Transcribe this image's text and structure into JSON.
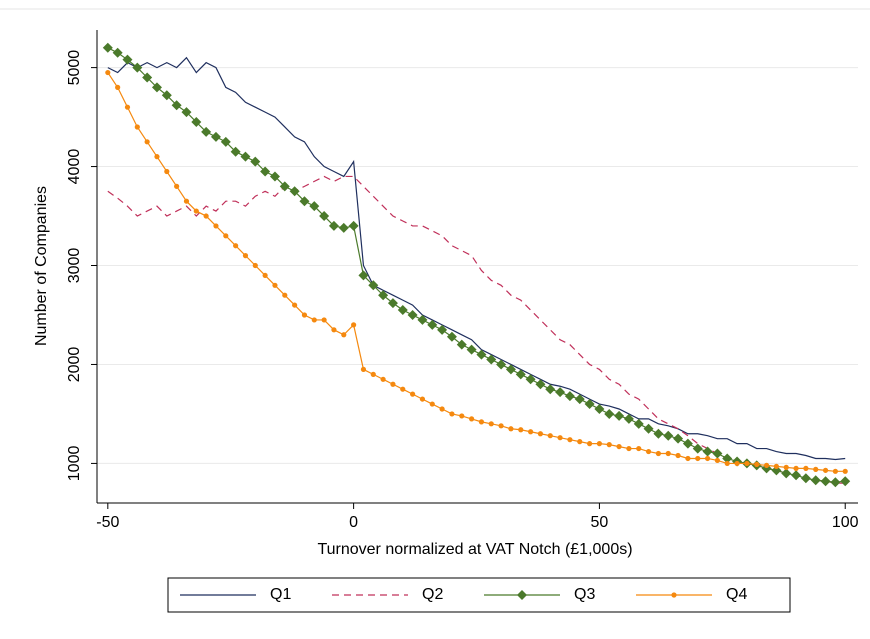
{
  "chart_data": {
    "type": "line",
    "xlabel": "Turnover normalized at VAT Notch (£1,000s)",
    "ylabel": "Number of Companies",
    "xlim": [
      -52.2,
      102.6
    ],
    "ylim": [
      600,
      5380
    ],
    "xticks": [
      -50,
      0,
      50,
      100
    ],
    "yticks": [
      1000,
      2000,
      3000,
      4000,
      5000
    ],
    "grid": true,
    "legend": "bottom",
    "x": [
      -50,
      -48,
      -46,
      -44,
      -42,
      -40,
      -38,
      -36,
      -34,
      -32,
      -30,
      -28,
      -26,
      -24,
      -22,
      -20,
      -18,
      -16,
      -14,
      -12,
      -10,
      -8,
      -6,
      -4,
      -2,
      0,
      2,
      4,
      6,
      8,
      10,
      12,
      14,
      16,
      18,
      20,
      22,
      24,
      26,
      28,
      30,
      32,
      34,
      36,
      38,
      40,
      42,
      44,
      46,
      48,
      50,
      52,
      54,
      56,
      58,
      60,
      62,
      64,
      66,
      68,
      70,
      72,
      74,
      76,
      78,
      80,
      82,
      84,
      86,
      88,
      90,
      92,
      94,
      96,
      98,
      100
    ],
    "series": [
      {
        "name": "Q1",
        "color": "#1f2f5e",
        "dashed": false,
        "marker": "none",
        "values": [
          5000,
          4950,
          5050,
          5000,
          5050,
          5000,
          5050,
          5000,
          5100,
          4950,
          5050,
          5000,
          4800,
          4750,
          4650,
          4600,
          4550,
          4500,
          4400,
          4300,
          4250,
          4100,
          4000,
          3950,
          3900,
          4050,
          3000,
          2800,
          2750,
          2700,
          2650,
          2600,
          2500,
          2450,
          2400,
          2350,
          2300,
          2250,
          2150,
          2100,
          2050,
          2000,
          1950,
          1900,
          1850,
          1800,
          1780,
          1750,
          1700,
          1650,
          1600,
          1580,
          1550,
          1500,
          1450,
          1450,
          1400,
          1380,
          1350,
          1300,
          1300,
          1280,
          1250,
          1250,
          1200,
          1200,
          1150,
          1150,
          1120,
          1100,
          1100,
          1080,
          1050,
          1050,
          1040,
          1050
        ]
      },
      {
        "name": "Q2",
        "color": "#c0305a",
        "dashed": true,
        "marker": "none",
        "values": [
          3750,
          3680,
          3600,
          3500,
          3550,
          3600,
          3500,
          3550,
          3600,
          3500,
          3600,
          3550,
          3650,
          3650,
          3600,
          3700,
          3750,
          3700,
          3800,
          3750,
          3800,
          3850,
          3900,
          3850,
          3900,
          3900,
          3800,
          3700,
          3600,
          3500,
          3450,
          3400,
          3400,
          3350,
          3300,
          3200,
          3150,
          3100,
          2950,
          2850,
          2800,
          2700,
          2650,
          2550,
          2450,
          2350,
          2250,
          2200,
          2100,
          2000,
          1950,
          1850,
          1800,
          1700,
          1650,
          1550,
          1450,
          1400,
          1350,
          1280,
          1200,
          1150,
          1100,
          1050,
          1000,
          1000,
          980,
          950,
          930,
          900,
          880,
          850,
          830,
          820,
          800,
          800
        ]
      },
      {
        "name": "Q3",
        "color": "#4b7a2b",
        "dashed": false,
        "marker": "diamond",
        "values": [
          5200,
          5150,
          5080,
          5000,
          4900,
          4800,
          4720,
          4620,
          4550,
          4450,
          4350,
          4300,
          4250,
          4150,
          4100,
          4050,
          3950,
          3900,
          3800,
          3750,
          3650,
          3600,
          3500,
          3400,
          3380,
          3400,
          2900,
          2800,
          2700,
          2620,
          2550,
          2500,
          2450,
          2400,
          2350,
          2280,
          2200,
          2150,
          2100,
          2050,
          2000,
          1950,
          1900,
          1850,
          1800,
          1750,
          1720,
          1680,
          1650,
          1600,
          1550,
          1500,
          1480,
          1450,
          1400,
          1350,
          1300,
          1280,
          1250,
          1200,
          1150,
          1120,
          1100,
          1050,
          1020,
          1000,
          980,
          950,
          930,
          900,
          880,
          850,
          830,
          820,
          810,
          820
        ]
      },
      {
        "name": "Q4",
        "color": "#f5890f",
        "dashed": false,
        "marker": "circle",
        "values": [
          4950,
          4800,
          4600,
          4400,
          4250,
          4100,
          3950,
          3800,
          3650,
          3550,
          3500,
          3400,
          3300,
          3200,
          3100,
          3000,
          2900,
          2800,
          2700,
          2600,
          2500,
          2450,
          2450,
          2350,
          2300,
          2400,
          1950,
          1900,
          1850,
          1800,
          1750,
          1700,
          1650,
          1600,
          1550,
          1500,
          1480,
          1450,
          1420,
          1400,
          1380,
          1350,
          1340,
          1320,
          1300,
          1280,
          1260,
          1240,
          1220,
          1200,
          1200,
          1190,
          1170,
          1150,
          1150,
          1120,
          1100,
          1100,
          1080,
          1050,
          1050,
          1050,
          1030,
          1000,
          1000,
          1000,
          990,
          980,
          970,
          960,
          950,
          950,
          940,
          930,
          920,
          920
        ]
      }
    ]
  }
}
